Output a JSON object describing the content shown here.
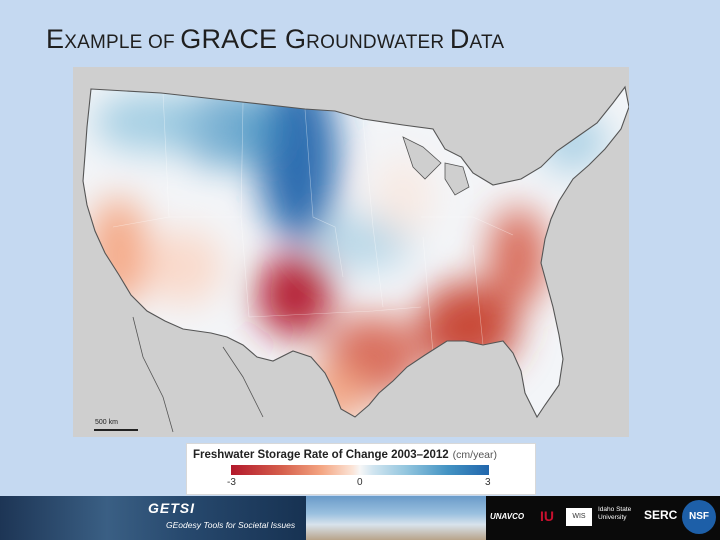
{
  "title": {
    "part1": "E",
    "part2": "XAMPLE OF ",
    "part3": "GRACE G",
    "part4": "ROUNDWATER ",
    "part5": "D",
    "part6": "ATA"
  },
  "map": {
    "scale_label": "500 km",
    "colors": {
      "background": "#cfcfcf",
      "strong_negative": "#b2182b",
      "negative": "#d6604d",
      "mild_negative": "#f4a582",
      "neutral": "#f7f7f7",
      "mild_positive": "#92c5de",
      "positive": "#4393c3",
      "strong_positive": "#2166ac"
    }
  },
  "legend": {
    "title": "Freshwater Storage Rate of Change 2003–2012",
    "unit": "(cm/year)",
    "ticks": [
      "-3",
      "0",
      "3"
    ]
  },
  "footer": {
    "brand": "GETSI",
    "tagline": "GEodesy Tools for Societal Issues",
    "partners": [
      "UNAVCO",
      "IU",
      "WIS",
      "Idaho State University",
      "SERC",
      "NSF"
    ]
  }
}
